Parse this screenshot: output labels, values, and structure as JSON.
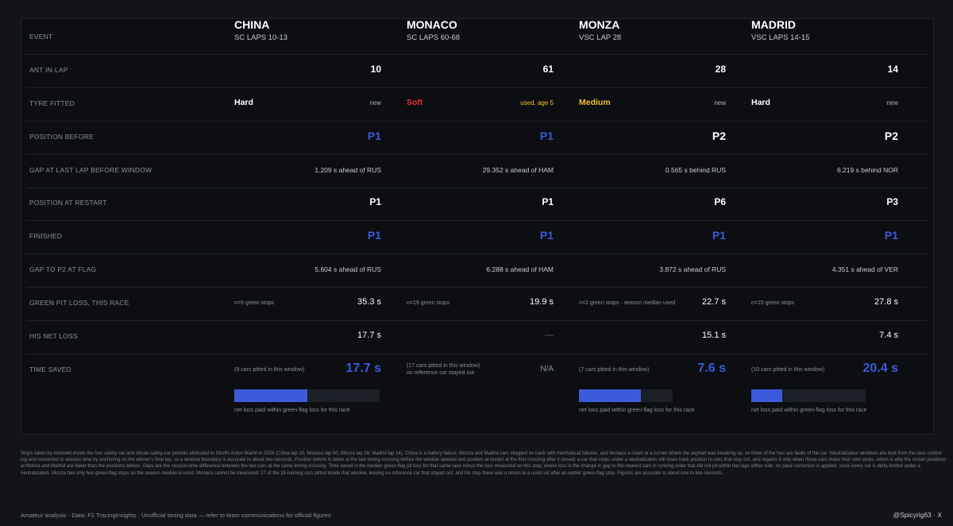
{
  "event_label": "EVENT",
  "row_labels": {
    "in_lap": "ANT IN-LAP",
    "tyre": "TYRE FITTED",
    "pos_before": "POSITION BEFORE",
    "gap_before": "GAP AT LAST LAP BEFORE WINDOW",
    "pos_restart": "POSITION AT RESTART",
    "finished": "FINISHED",
    "gap_flag": "GAP TO P2 AT FLAG",
    "green_loss": "GREEN PIT LOSS, THIS RACE",
    "net_loss": "HIS NET LOSS",
    "time_saved": "TIME SAVED"
  },
  "events": [
    {
      "venue": "CHINA",
      "window": "SC LAPS 10-13",
      "in_lap": "10",
      "tyre": "Hard",
      "tyre_color": "#ffffff",
      "tyre_note": "new",
      "tyre_note_color": "#aab0b8",
      "pos_before": "P1",
      "pos_before_color": "#3b5bdb",
      "gap_before": "1.209 s ahead of RUS",
      "pos_restart": "P1",
      "finished": "P1",
      "finished_color": "#3b5bdb",
      "gap_flag": "5.604 s ahead of RUS",
      "green_note": "n=9 green stops",
      "green_loss": "35.3 s",
      "net_loss": "17.7 s",
      "saved_note": "(9 cars pitted in this window)",
      "saved_note2": "",
      "saved": "17.7 s",
      "saved_color": "#3b5bdb",
      "bar": true,
      "bar_fraction": 0.5,
      "bar_caption": "net loss paid within green-flag loss for this race"
    },
    {
      "venue": "MONACO",
      "window": "SC LAPS 60-68",
      "in_lap": "61",
      "tyre": "Soft",
      "tyre_color": "#e03131",
      "tyre_note": "used, age 5",
      "tyre_note_color": "#f2c230",
      "pos_before": "P1",
      "pos_before_color": "#3b5bdb",
      "gap_before": "29.352 s ahead of HAM",
      "pos_restart": "P1",
      "finished": "P1",
      "finished_color": "#3b5bdb",
      "gap_flag": "6.288 s ahead of HAM",
      "green_note": "n=19 green stops",
      "green_loss": "19.9 s",
      "net_loss": "—",
      "saved_note": "(17 cars pitted in this window)",
      "saved_note2": "no reference car stayed out",
      "saved": "N/A",
      "saved_color": "#8a9099",
      "bar": false,
      "bar_fraction": 0,
      "bar_caption": ""
    },
    {
      "venue": "MONZA",
      "window": "VSC LAP 28",
      "in_lap": "28",
      "tyre": "Medium",
      "tyre_color": "#f2c230",
      "tyre_note": "new",
      "tyre_note_color": "#aab0b8",
      "pos_before": "P2",
      "pos_before_color": "#ffffff",
      "gap_before": "0.565 s behind RUS",
      "pos_restart": "P6",
      "finished": "P1",
      "finished_color": "#3b5bdb",
      "gap_flag": "3.872 s ahead of RUS",
      "green_note": "n=2 green stops · season median used",
      "green_loss": "22.7 s",
      "net_loss": "15.1 s",
      "saved_note": "(7 cars pitted in this window)",
      "saved_note2": "",
      "saved": "7.6 s",
      "saved_color": "#3b5bdb",
      "bar": true,
      "bar_fraction": 0.66,
      "bar_caption": "net loss paid within green-flag loss for this race"
    },
    {
      "venue": "MADRID",
      "window": "VSC LAPS 14-15",
      "in_lap": "14",
      "tyre": "Hard",
      "tyre_color": "#ffffff",
      "tyre_note": "new",
      "tyre_note_color": "#aab0b8",
      "pos_before": "P2",
      "pos_before_color": "#ffffff",
      "gap_before": "6.219 s behind NOR",
      "pos_restart": "P3",
      "finished": "P1",
      "finished_color": "#3b5bdb",
      "gap_flag": "4.351 s ahead of VER",
      "green_note": "n=15 green stops",
      "green_loss": "27.8 s",
      "net_loss": "7.4 s",
      "saved_note": "(10 cars pitted in this window)",
      "saved_note2": "",
      "saved": "20.4 s",
      "saved_color": "#3b5bdb",
      "bar": true,
      "bar_fraction": 0.27,
      "bar_caption": "net loss paid within green-flag loss for this race"
    }
  ],
  "footnote": "Stops taken by Antonelli inside the four safety-car and virtual-safety-car periods attributed to Stroll's Aston Martin in 2026 (China lap 10, Monaco lap 60, Monza lap 28, Madrid lap 14). China is a battery failure, Monza and Madrid cars stopped on track with mechanical failures, and Monaco a crash at a corner where the asphalt was breaking up, so three of the four are faults of the car. Neutralization windows are built from the race control log and converted to session time by anchoring on the winner's final lap, so a window boundary is accurate to about two seconds. Position before is taken at the last timing crossing before the window opened and position at restart at the first crossing after it closed; a car that stops under a neutralization still loses track position to cars that stay out, and regains it only when those cars make their own stops, which is why the restart positions at Monza and Madrid are lower than the positions before. Gaps are the session-time difference between the two cars at the same timing crossing. Time saved is the median green-flag pit loss for that same race minus the loss measured on this stop, where loss is the change in gap to the nearest cars in running order that did not pit within two laps either side; no pace correction is applied, since every car is delta-limited under a neutralization. Monza has only two green-flag stops so the season median is used. Monaco cannot be measured: 17 of the 19 running cars pitted inside that window, leaving no reference car that stayed out, and his stop there was a return to a used set after an earlier green-flag stop. Figures are accurate to about one to two seconds.",
  "footer_left": "Amateur analysis · Data: F1 TracingInsights · Unofficial timing data — refer to team communications for official figures",
  "footer_right": "@Spicyrig63 · X"
}
